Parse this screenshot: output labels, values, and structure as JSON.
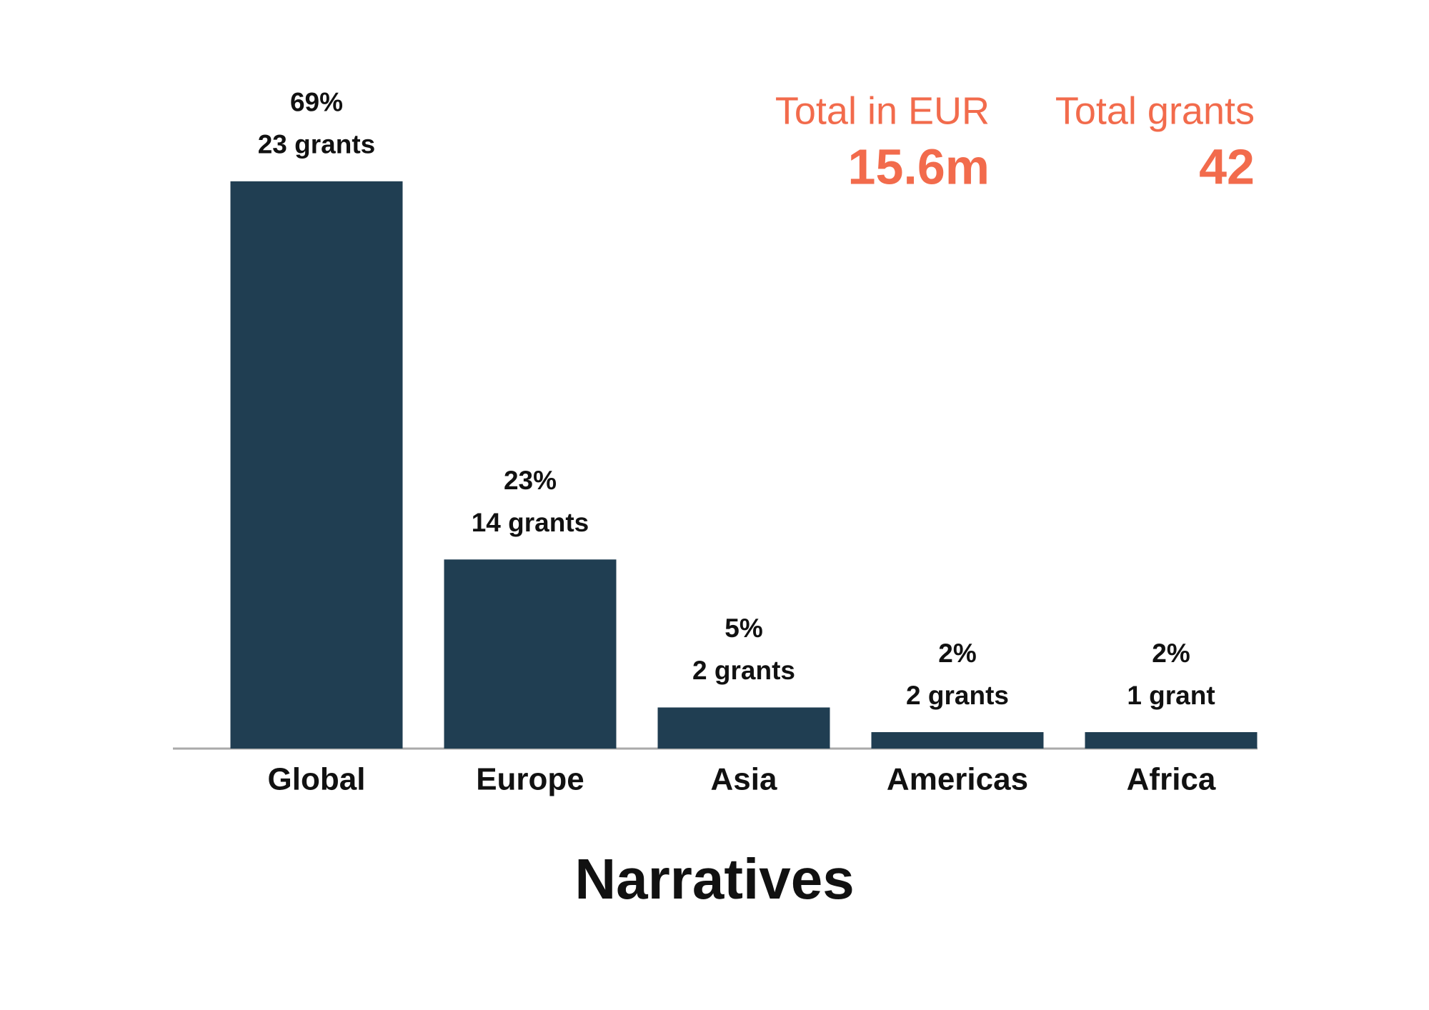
{
  "chart_data": {
    "type": "bar",
    "title": "Narratives",
    "categories": [
      "Global",
      "Europe",
      "Asia",
      "Americas",
      "Africa"
    ],
    "values": [
      69,
      23,
      5,
      2,
      2
    ],
    "value_labels": [
      "69%",
      "23%",
      "5%",
      "2%",
      "2%"
    ],
    "grant_labels": [
      "23 grants",
      "14 grants",
      "2 grants",
      "2 grants",
      "1 grant"
    ],
    "color": "#203e52",
    "totals": [
      {
        "label": "Total in EUR",
        "value": "15.6m"
      },
      {
        "label": "Total grants",
        "value": 42
      }
    ],
    "totals_color": "#f26b4c"
  }
}
